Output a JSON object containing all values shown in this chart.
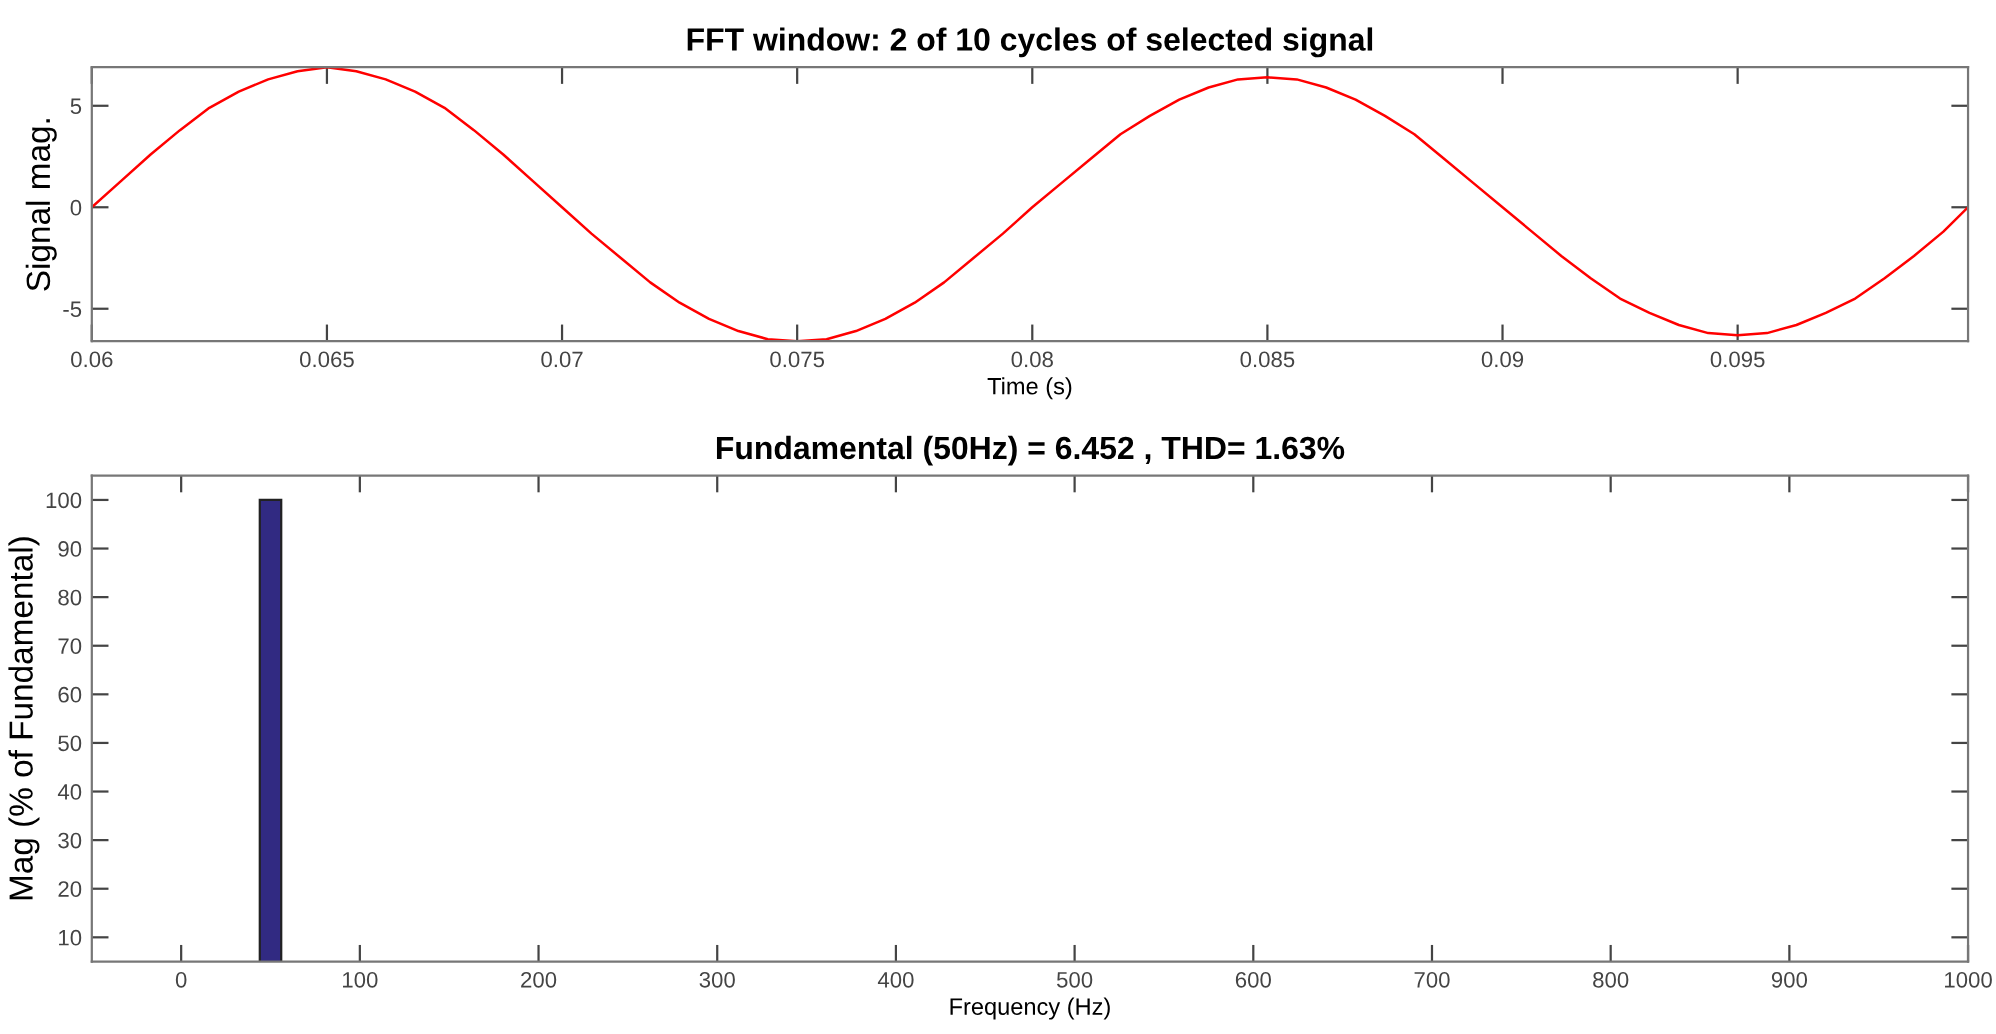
{
  "chart_data": [
    {
      "type": "line",
      "title": "FFT window: 2 of 10 cycles of selected signal",
      "xlabel": "Time (s)",
      "ylabel": "Signal mag.",
      "xlim": [
        0.06,
        0.0999
      ],
      "xticks": [
        0.06,
        0.065,
        0.07,
        0.075,
        0.08,
        0.085,
        0.09,
        0.095
      ],
      "ylim": [
        -6.6,
        6.9
      ],
      "yticks": [
        -5,
        0,
        5
      ],
      "grid": false,
      "legend": false,
      "series": [
        {
          "color": "#ff0000",
          "x": [
            0.06,
            0.060625,
            0.06125,
            0.061875,
            0.0625,
            0.063125,
            0.06375,
            0.064375,
            0.065,
            0.065625,
            0.06625,
            0.066875,
            0.0675,
            0.068125,
            0.06875,
            0.069375,
            0.07,
            0.070625,
            0.07125,
            0.071875,
            0.0725,
            0.073125,
            0.07375,
            0.074375,
            0.075,
            0.075625,
            0.07625,
            0.076875,
            0.0775,
            0.078125,
            0.07875,
            0.079375,
            0.08,
            0.080625,
            0.08125,
            0.081875,
            0.0825,
            0.083125,
            0.08375,
            0.084375,
            0.085,
            0.085625,
            0.08625,
            0.086875,
            0.0875,
            0.088125,
            0.08875,
            0.089375,
            0.09,
            0.090625,
            0.09125,
            0.091875,
            0.0925,
            0.093125,
            0.09375,
            0.094375,
            0.095,
            0.095625,
            0.09625,
            0.096875,
            0.0975,
            0.098125,
            0.09875,
            0.099375,
            0.0999
          ],
          "values": [
            0,
            1.3,
            2.6,
            3.8,
            4.9,
            5.7,
            6.3,
            6.7,
            6.9,
            6.7,
            6.3,
            5.7,
            4.9,
            3.8,
            2.6,
            1.3,
            0,
            -1.3,
            -2.5,
            -3.7,
            -4.7,
            -5.5,
            -6.1,
            -6.5,
            -6.6,
            -6.5,
            -6.1,
            -5.5,
            -4.7,
            -3.7,
            -2.5,
            -1.3,
            0,
            1.2,
            2.4,
            3.6,
            4.5,
            5.3,
            5.9,
            6.3,
            6.4,
            6.3,
            5.9,
            5.3,
            4.5,
            3.6,
            2.4,
            1.2,
            0,
            -1.2,
            -2.4,
            -3.5,
            -4.5,
            -5.2,
            -5.8,
            -6.2,
            -6.3,
            -6.2,
            -5.8,
            -5.2,
            -4.5,
            -3.5,
            -2.4,
            -1.2,
            0
          ]
        }
      ]
    },
    {
      "type": "bar",
      "title": "Fundamental (50Hz) = 6.452 , THD= 1.63%",
      "xlabel": "Frequency (Hz)",
      "ylabel": "Mag (% of Fundamental)",
      "xlim": [
        -50,
        1000
      ],
      "xticks": [
        0,
        100,
        200,
        300,
        400,
        500,
        600,
        700,
        800,
        900,
        1000
      ],
      "ylim": [
        5,
        105
      ],
      "yticks": [
        10,
        20,
        30,
        40,
        50,
        60,
        70,
        80,
        90,
        100
      ],
      "grid": false,
      "legend": false,
      "series": [
        {
          "color": "#312a82",
          "x": [
            50
          ],
          "values": [
            100
          ]
        }
      ]
    }
  ]
}
